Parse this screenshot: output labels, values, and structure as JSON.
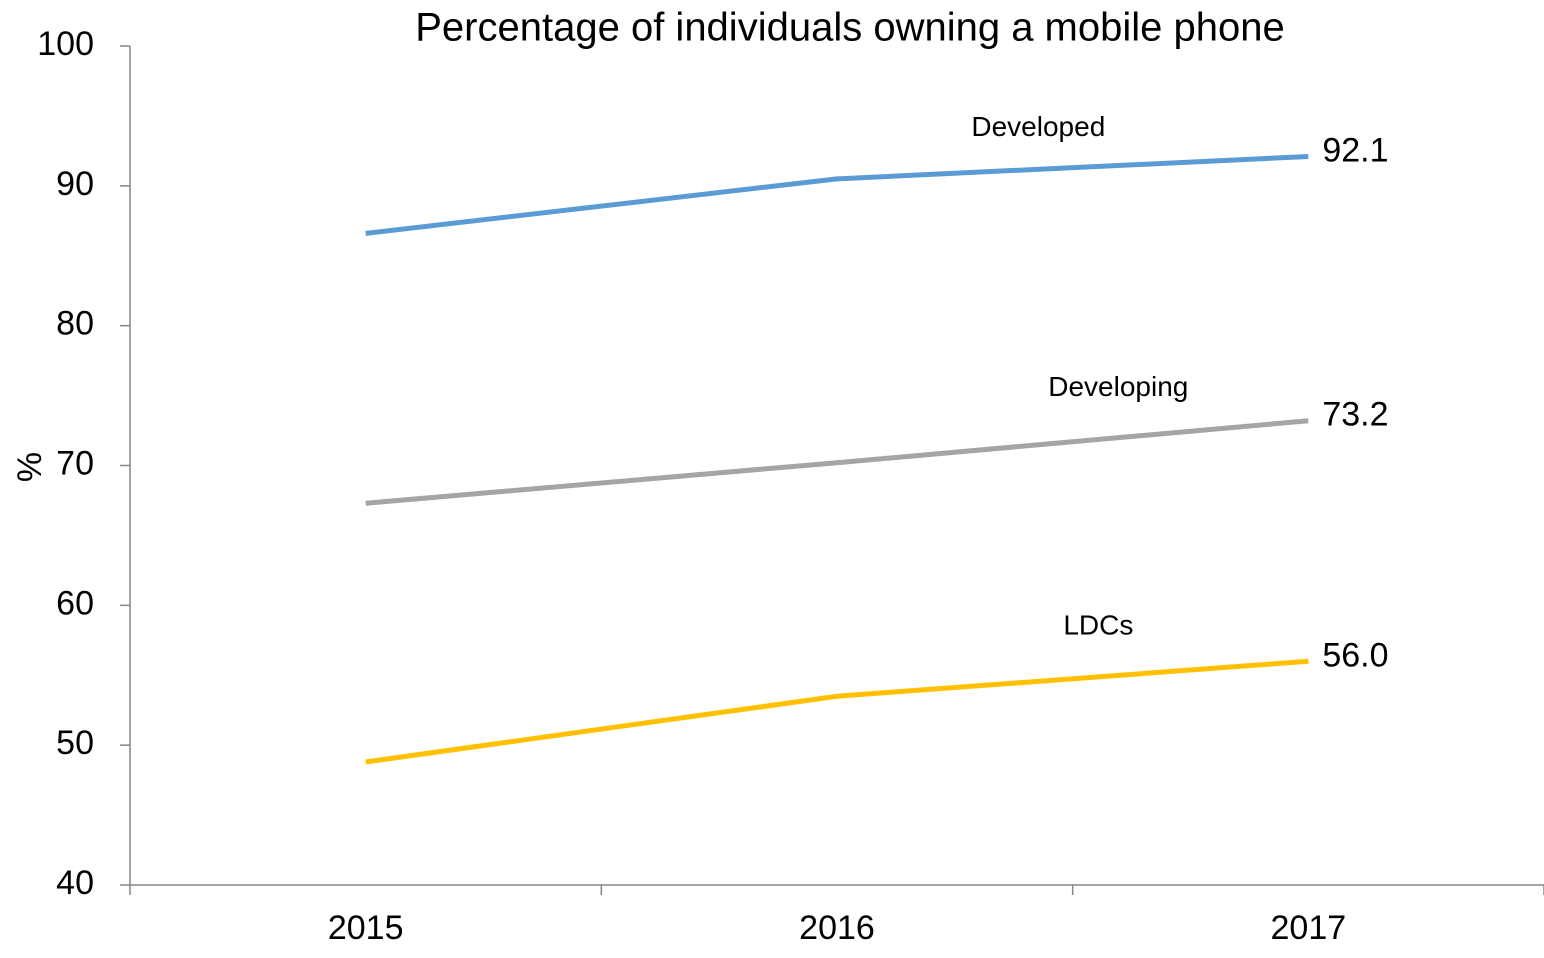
{
  "chart_data": {
    "type": "line",
    "title": "Percentage of individuals owning a mobile phone",
    "y_label": "%",
    "categories": [
      "2015",
      "2016",
      "2017"
    ],
    "series": [
      {
        "name": "Developed",
        "color": "#5b9bd5",
        "values": [
          86.6,
          90.5,
          92.1
        ],
        "value_labels": [
          null,
          null,
          "92.1"
        ]
      },
      {
        "name": "Developing",
        "color": "#a5a5a5",
        "values": [
          67.3,
          70.2,
          73.2
        ],
        "value_labels": [
          null,
          null,
          "73.2"
        ]
      },
      {
        "name": "LDCs",
        "color": "#ffc000",
        "values": [
          48.8,
          53.5,
          56.0
        ],
        "value_labels": [
          null,
          null,
          "56.0"
        ]
      }
    ],
    "ylim": [
      40,
      100
    ],
    "yticks": [
      40,
      50,
      60,
      70,
      80,
      90,
      100
    ],
    "grid": false
  }
}
